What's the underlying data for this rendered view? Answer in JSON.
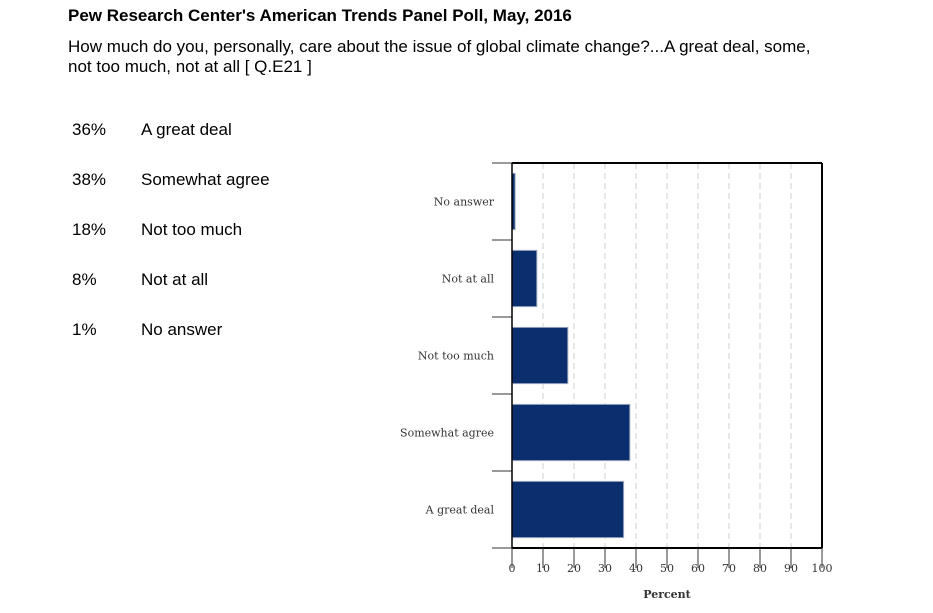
{
  "header": {
    "title": "Pew Research Center's American Trends Panel Poll, May, 2016",
    "question": "How much do you, personally, care about the issue of global climate change?...A great deal, some, not too much, not at all [ Q.E21 ]"
  },
  "results": [
    {
      "pct": "36%",
      "label": "A great deal"
    },
    {
      "pct": "38%",
      "label": "Somewhat agree"
    },
    {
      "pct": "18%",
      "label": "Not too much"
    },
    {
      "pct": "8%",
      "label": "Not at all"
    },
    {
      "pct": "1%",
      "label": "No answer"
    }
  ],
  "chart_data": {
    "type": "bar",
    "orientation": "horizontal",
    "categories": [
      "No answer",
      "Not at all",
      "Not too much",
      "Somewhat agree",
      "A great deal"
    ],
    "values": [
      1,
      8,
      18,
      38,
      36
    ],
    "xlabel": "Percent",
    "xlim": [
      0,
      100
    ],
    "xticks": [
      0,
      10,
      20,
      30,
      40,
      50,
      60,
      70,
      80,
      90,
      100
    ],
    "grid": true,
    "bar_color": "#0b2f6e"
  }
}
